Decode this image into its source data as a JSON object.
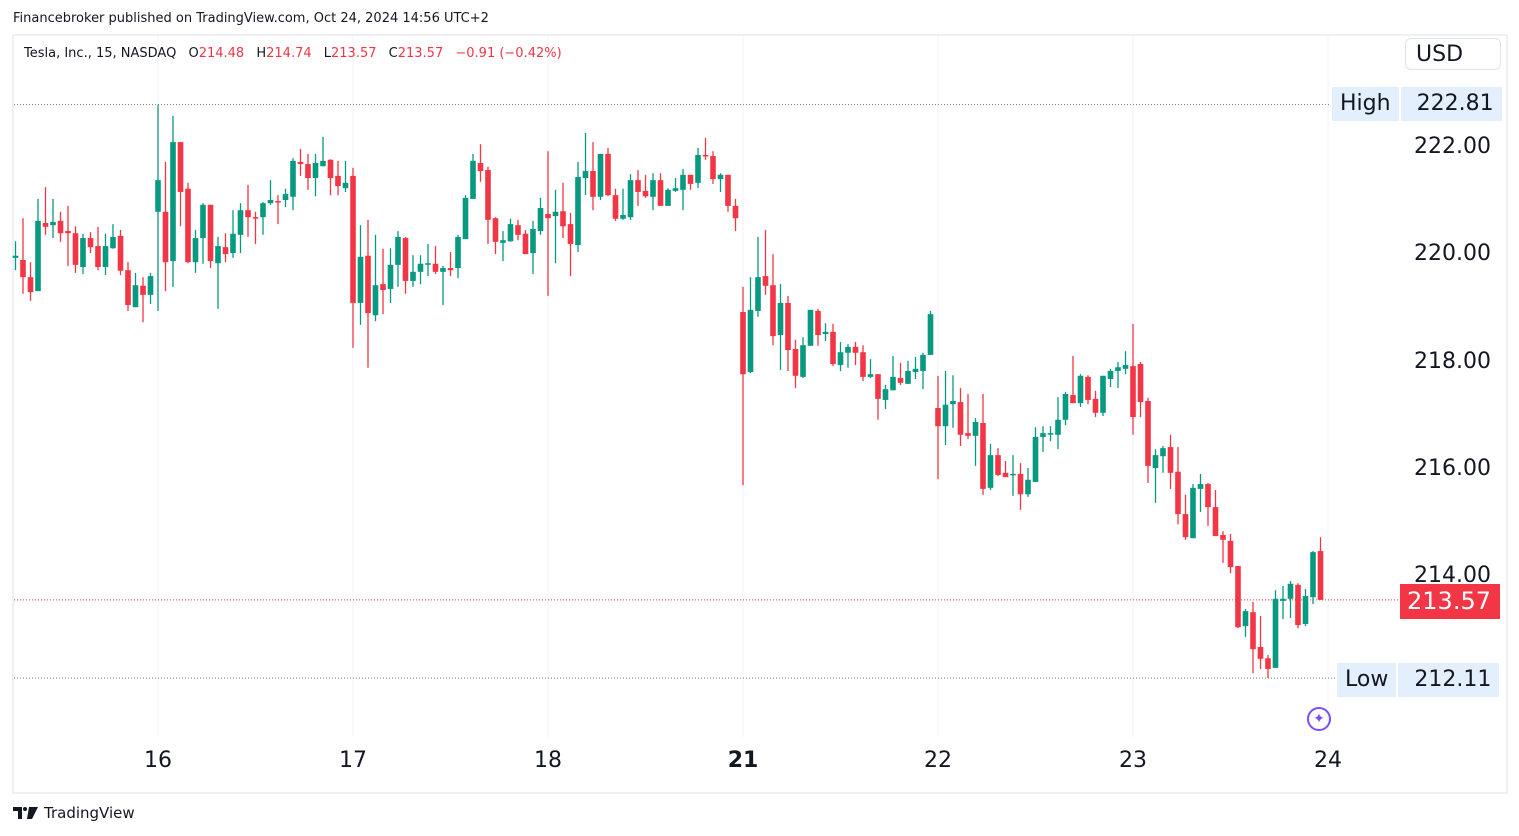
{
  "header": {
    "published": "Financebroker published on TradingView.com, Oct 24, 2024 14:56 UTC+2"
  },
  "legend": {
    "symbol": "Tesla, Inc., 15, NASDAQ",
    "o_label": "O",
    "o": "214.48",
    "h_label": "H",
    "h": "214.74",
    "l_label": "L",
    "l": "213.57",
    "c_label": "C",
    "c": "213.57",
    "change": "−0.91 (−0.42%)"
  },
  "currency_button": "USD",
  "price_scale": {
    "ticks": [
      "222.00",
      "220.00",
      "218.00",
      "216.00",
      "214.00"
    ],
    "high_label": "High",
    "high_value": "222.81",
    "low_label": "Low",
    "low_value": "212.11",
    "last_value": "213.57"
  },
  "footer": {
    "brand": "TradingView"
  },
  "icons": {
    "assistant": "sparkle-icon",
    "logo": "tradingview-logo-icon"
  },
  "colors": {
    "up": "#089981",
    "down": "#f23645",
    "hl_bg": "#e3effd",
    "accent": "#7c4dff"
  },
  "chart_data": {
    "type": "candlestick",
    "title": "Tesla, Inc., 15, NASDAQ",
    "interval_minutes": 15,
    "x_ticks": [
      "16",
      "17",
      "18",
      "21",
      "22",
      "23",
      "24"
    ],
    "x_ticks_bold": [
      "21"
    ],
    "ylim": [
      211.0,
      224.0
    ],
    "y_ticks": [
      222,
      220,
      218,
      216,
      214
    ],
    "high": 222.81,
    "low": 212.11,
    "last": 213.57,
    "grid": "vertical-day-lines",
    "ohlc": [
      [
        219.95,
        220.26,
        219.72,
        219.99
      ],
      [
        219.91,
        220.69,
        219.28,
        219.59
      ],
      [
        219.59,
        219.87,
        219.15,
        219.31
      ],
      [
        219.33,
        221.05,
        219.33,
        220.64
      ],
      [
        220.6,
        221.27,
        220.38,
        220.53
      ],
      [
        220.56,
        221.05,
        220.32,
        220.62
      ],
      [
        220.64,
        220.81,
        220.25,
        220.41
      ],
      [
        220.45,
        220.92,
        219.8,
        220.41
      ],
      [
        220.41,
        220.54,
        219.67,
        219.82
      ],
      [
        219.78,
        220.4,
        219.65,
        220.32
      ],
      [
        220.32,
        220.43,
        220.04,
        220.15
      ],
      [
        220.17,
        220.53,
        219.72,
        219.78
      ],
      [
        219.78,
        220.4,
        219.63,
        220.17
      ],
      [
        220.13,
        220.58,
        220.12,
        220.34
      ],
      [
        220.36,
        220.47,
        219.63,
        219.71
      ],
      [
        219.72,
        219.87,
        218.96,
        219.07
      ],
      [
        219.03,
        219.67,
        219.03,
        219.44
      ],
      [
        219.43,
        219.59,
        218.75,
        219.26
      ],
      [
        219.26,
        219.67,
        219.09,
        219.61
      ],
      [
        220.81,
        222.81,
        218.96,
        221.4
      ],
      [
        220.81,
        221.74,
        219.33,
        219.87
      ],
      [
        219.89,
        222.6,
        219.41,
        222.11
      ],
      [
        222.11,
        222.11,
        220.54,
        221.18
      ],
      [
        221.24,
        221.35,
        219.85,
        219.87
      ],
      [
        219.87,
        220.47,
        219.67,
        220.32
      ],
      [
        220.32,
        220.97,
        219.84,
        220.94
      ],
      [
        220.94,
        220.94,
        219.76,
        219.89
      ],
      [
        219.85,
        220.34,
        219.0,
        220.17
      ],
      [
        220.15,
        220.41,
        219.87,
        220.02
      ],
      [
        220.04,
        220.84,
        219.95,
        220.4
      ],
      [
        220.38,
        220.97,
        220.04,
        220.84
      ],
      [
        220.84,
        221.31,
        220.34,
        220.71
      ],
      [
        220.71,
        220.81,
        220.21,
        220.69
      ],
      [
        220.71,
        220.99,
        220.38,
        220.97
      ],
      [
        220.97,
        221.4,
        220.94,
        221.03
      ],
      [
        221.01,
        221.12,
        220.58,
        220.99
      ],
      [
        221.03,
        221.24,
        220.9,
        221.14
      ],
      [
        221.09,
        221.81,
        220.84,
        221.76
      ],
      [
        221.74,
        221.98,
        221.48,
        221.7
      ],
      [
        221.7,
        221.89,
        221.22,
        221.44
      ],
      [
        221.44,
        221.89,
        221.1,
        221.72
      ],
      [
        221.66,
        222.21,
        221.66,
        221.76
      ],
      [
        221.78,
        221.79,
        221.12,
        221.44
      ],
      [
        221.48,
        221.76,
        221.12,
        221.29
      ],
      [
        221.25,
        221.76,
        221.18,
        221.35
      ],
      [
        221.48,
        221.63,
        218.27,
        219.11
      ],
      [
        219.11,
        220.56,
        218.7,
        219.97
      ],
      [
        219.99,
        220.66,
        217.9,
        218.92
      ],
      [
        218.88,
        220.38,
        218.77,
        219.44
      ],
      [
        219.46,
        220.12,
        218.9,
        219.35
      ],
      [
        219.37,
        220.13,
        219.11,
        219.82
      ],
      [
        219.82,
        220.45,
        219.41,
        220.34
      ],
      [
        220.32,
        220.34,
        219.28,
        219.52
      ],
      [
        219.52,
        220.0,
        219.41,
        219.69
      ],
      [
        219.69,
        220.0,
        219.46,
        219.84
      ],
      [
        219.84,
        220.21,
        219.61,
        219.85
      ],
      [
        219.84,
        220.17,
        219.65,
        219.69
      ],
      [
        219.69,
        219.8,
        219.07,
        219.76
      ],
      [
        219.76,
        220.06,
        219.61,
        219.72
      ],
      [
        219.76,
        220.38,
        219.57,
        220.34
      ],
      [
        220.3,
        221.12,
        220.3,
        221.07
      ],
      [
        221.05,
        221.89,
        221.05,
        221.76
      ],
      [
        221.72,
        222.07,
        221.37,
        221.57
      ],
      [
        221.59,
        221.65,
        220.21,
        220.66
      ],
      [
        220.69,
        220.71,
        220.02,
        220.25
      ],
      [
        220.23,
        220.45,
        219.89,
        220.28
      ],
      [
        220.26,
        220.68,
        220.25,
        220.58
      ],
      [
        220.56,
        220.66,
        220.28,
        220.38
      ],
      [
        220.4,
        220.47,
        220.02,
        220.02
      ],
      [
        220.04,
        220.64,
        219.65,
        220.49
      ],
      [
        220.45,
        221.07,
        220.38,
        220.88
      ],
      [
        220.77,
        221.94,
        219.24,
        220.69
      ],
      [
        220.73,
        221.22,
        219.85,
        220.81
      ],
      [
        220.82,
        221.35,
        220.32,
        220.54
      ],
      [
        220.58,
        220.79,
        219.61,
        220.21
      ],
      [
        220.19,
        221.74,
        220.06,
        221.46
      ],
      [
        221.44,
        222.28,
        221.12,
        221.57
      ],
      [
        221.57,
        222.11,
        220.84,
        221.09
      ],
      [
        221.09,
        221.89,
        221.03,
        221.89
      ],
      [
        221.89,
        222.0,
        221.1,
        221.12
      ],
      [
        221.12,
        221.24,
        220.64,
        220.68
      ],
      [
        220.68,
        221.24,
        220.66,
        220.75
      ],
      [
        220.71,
        221.51,
        220.66,
        221.4
      ],
      [
        221.4,
        221.59,
        220.92,
        221.18
      ],
      [
        221.2,
        221.5,
        221.07,
        221.1
      ],
      [
        221.09,
        221.53,
        220.84,
        221.4
      ],
      [
        221.4,
        221.53,
        220.92,
        220.92
      ],
      [
        220.92,
        221.25,
        220.92,
        221.22
      ],
      [
        221.2,
        221.44,
        221.18,
        221.25
      ],
      [
        221.22,
        221.61,
        220.84,
        221.5
      ],
      [
        221.5,
        221.5,
        221.22,
        221.33
      ],
      [
        221.35,
        222.0,
        221.25,
        221.87
      ],
      [
        221.87,
        222.19,
        221.78,
        221.85
      ],
      [
        221.85,
        221.94,
        221.33,
        221.42
      ],
      [
        221.42,
        221.53,
        221.18,
        221.5
      ],
      [
        221.5,
        221.5,
        220.81,
        220.92
      ],
      [
        220.92,
        221.05,
        220.45,
        220.69
      ],
      [
        218.94,
        219.41,
        215.71,
        217.78
      ],
      [
        217.82,
        219.59,
        217.8,
        218.98
      ],
      [
        218.96,
        220.34,
        218.85,
        219.59
      ],
      [
        219.61,
        220.47,
        219.26,
        219.43
      ],
      [
        219.44,
        220.02,
        218.32,
        218.49
      ],
      [
        218.51,
        219.46,
        217.86,
        219.11
      ],
      [
        219.11,
        219.24,
        217.84,
        218.23
      ],
      [
        218.25,
        218.42,
        217.52,
        217.75
      ],
      [
        217.73,
        218.47,
        217.71,
        218.32
      ],
      [
        218.31,
        218.98,
        218.31,
        218.98
      ],
      [
        218.96,
        219.0,
        218.31,
        218.51
      ],
      [
        218.53,
        218.73,
        218.4,
        218.57
      ],
      [
        218.57,
        218.72,
        217.93,
        217.97
      ],
      [
        217.95,
        218.38,
        217.84,
        218.19
      ],
      [
        218.18,
        218.34,
        217.9,
        218.29
      ],
      [
        218.29,
        218.38,
        217.95,
        218.18
      ],
      [
        218.19,
        218.32,
        217.65,
        217.73
      ],
      [
        217.73,
        218.06,
        217.71,
        217.78
      ],
      [
        217.78,
        217.78,
        216.93,
        217.32
      ],
      [
        217.3,
        217.58,
        217.13,
        217.5
      ],
      [
        217.48,
        218.12,
        217.48,
        217.73
      ],
      [
        217.71,
        217.99,
        217.58,
        217.62
      ],
      [
        217.6,
        218.03,
        217.6,
        217.84
      ],
      [
        217.82,
        218.1,
        217.69,
        217.88
      ],
      [
        217.84,
        218.18,
        217.5,
        218.14
      ],
      [
        218.14,
        218.96,
        218.14,
        218.9
      ],
      [
        217.15,
        217.75,
        215.82,
        216.81
      ],
      [
        216.81,
        217.84,
        216.46,
        217.21
      ],
      [
        217.22,
        217.76,
        216.78,
        217.28
      ],
      [
        217.26,
        217.52,
        216.44,
        216.65
      ],
      [
        216.68,
        217.41,
        216.57,
        216.63
      ],
      [
        216.63,
        216.96,
        216.07,
        216.89
      ],
      [
        216.87,
        217.41,
        215.53,
        215.64
      ],
      [
        215.66,
        216.48,
        215.62,
        216.27
      ],
      [
        216.27,
        216.4,
        215.88,
        215.9
      ],
      [
        215.94,
        216.16,
        215.86,
        215.86
      ],
      [
        215.9,
        216.27,
        215.51,
        215.92
      ],
      [
        215.92,
        216.12,
        215.25,
        215.54
      ],
      [
        215.54,
        216.03,
        215.49,
        215.81
      ],
      [
        215.77,
        216.79,
        215.77,
        216.61
      ],
      [
        216.61,
        216.81,
        216.33,
        216.68
      ],
      [
        216.66,
        216.81,
        216.53,
        216.68
      ],
      [
        216.65,
        217.35,
        216.38,
        216.93
      ],
      [
        216.93,
        217.45,
        216.83,
        217.41
      ],
      [
        217.39,
        218.12,
        217.24,
        217.24
      ],
      [
        217.24,
        217.78,
        217.17,
        217.75
      ],
      [
        217.73,
        217.76,
        217.22,
        217.3
      ],
      [
        217.32,
        217.47,
        216.98,
        217.06
      ],
      [
        217.06,
        217.75,
        217.0,
        217.75
      ],
      [
        217.69,
        217.88,
        217.54,
        217.84
      ],
      [
        217.84,
        218.01,
        217.52,
        217.91
      ],
      [
        217.88,
        218.21,
        217.78,
        217.95
      ],
      [
        217.93,
        218.72,
        216.65,
        216.98
      ],
      [
        217.97,
        218.01,
        216.98,
        217.26
      ],
      [
        217.28,
        217.34,
        215.75,
        216.07
      ],
      [
        216.03,
        216.38,
        215.38,
        216.27
      ],
      [
        216.25,
        216.44,
        215.94,
        216.4
      ],
      [
        216.42,
        216.65,
        215.64,
        215.94
      ],
      [
        215.96,
        216.42,
        214.98,
        215.17
      ],
      [
        215.17,
        215.53,
        214.69,
        214.74
      ],
      [
        214.72,
        215.73,
        214.72,
        215.66
      ],
      [
        215.64,
        215.92,
        215.21,
        215.73
      ],
      [
        215.73,
        215.75,
        214.95,
        215.3
      ],
      [
        215.3,
        215.62,
        214.76,
        214.76
      ],
      [
        214.78,
        214.85,
        214.26,
        214.69
      ],
      [
        214.67,
        214.8,
        214.07,
        214.18
      ],
      [
        214.2,
        214.2,
        213.04,
        213.06
      ],
      [
        213.08,
        213.4,
        212.88,
        213.36
      ],
      [
        213.34,
        213.53,
        212.2,
        212.65
      ],
      [
        212.69,
        213.27,
        212.28,
        212.47
      ],
      [
        212.48,
        212.54,
        212.11,
        212.28
      ],
      [
        212.3,
        213.75,
        212.3,
        213.59
      ],
      [
        213.55,
        213.83,
        213.21,
        213.59
      ],
      [
        213.59,
        213.92,
        213.23,
        213.87
      ],
      [
        213.85,
        213.88,
        213.04,
        213.1
      ],
      [
        213.12,
        213.77,
        213.08,
        213.64
      ],
      [
        213.62,
        214.48,
        213.49,
        214.46
      ],
      [
        214.48,
        214.74,
        213.57,
        213.57
      ]
    ]
  }
}
